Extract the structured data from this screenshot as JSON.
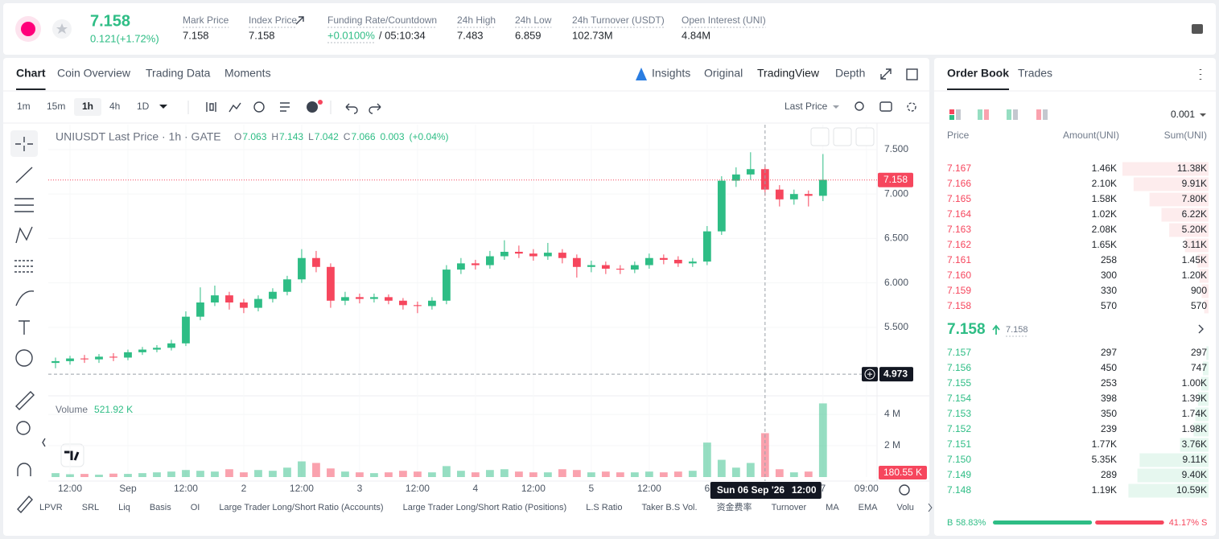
{
  "header": {
    "price": "7.158",
    "change": "0.121(+1.72%)",
    "stats": [
      {
        "label": "Mark Price",
        "value": "7.158"
      },
      {
        "label": "Index Price",
        "value": "7.158"
      },
      {
        "label": "Funding Rate/Countdown",
        "value": "+0.0100%",
        "extra": "/ 05:10:34"
      },
      {
        "label": "24h High",
        "value": "7.483"
      },
      {
        "label": "24h Low",
        "value": "6.859"
      },
      {
        "label": "24h Turnover (USDT)",
        "value": "102.73M"
      },
      {
        "label": "Open Interest (UNI)",
        "value": "4.84M"
      }
    ]
  },
  "tabs": {
    "left": [
      "Chart",
      "Coin Overview",
      "Trading Data",
      "Moments"
    ],
    "right": [
      "Insights",
      "Original",
      "TradingView",
      "Depth"
    ]
  },
  "toolbar": {
    "intervals": [
      "1m",
      "15m",
      "1h",
      "4h",
      "1D"
    ],
    "price_type": "Last Price"
  },
  "chart_data": {
    "type": "candlestick",
    "title": "UNIUSDT Last Price · 1h · GATE",
    "ohlc_legend": [
      {
        "key": "O",
        "value": "7.063"
      },
      {
        "key": "H",
        "value": "7.143"
      },
      {
        "key": "L",
        "value": "7.042"
      },
      {
        "key": "C",
        "value": "7.066"
      }
    ],
    "change": "0.003",
    "change_pct": "(+0.04%)",
    "x": [
      -15,
      -12,
      -9,
      -6,
      -3,
      0,
      3,
      6,
      9,
      12,
      15,
      18,
      21,
      24,
      27,
      30,
      33,
      36,
      39,
      42,
      45,
      48,
      51,
      54,
      57,
      60,
      63,
      66,
      69,
      72,
      75,
      78,
      81,
      84,
      87,
      90,
      93,
      96,
      99,
      102,
      105,
      108,
      111,
      114,
      117,
      120,
      123,
      126,
      129,
      132,
      135,
      138,
      141,
      144
    ],
    "open": [
      5.1,
      5.12,
      5.15,
      5.14,
      5.17,
      5.16,
      5.22,
      5.25,
      5.27,
      5.32,
      5.62,
      5.78,
      5.86,
      5.78,
      5.72,
      5.82,
      5.9,
      6.04,
      6.28,
      6.18,
      5.8,
      5.84,
      5.82,
      5.84,
      5.8,
      5.75,
      5.74,
      5.8,
      6.15,
      6.22,
      6.2,
      6.3,
      6.35,
      6.33,
      6.3,
      6.34,
      6.28,
      6.18,
      6.2,
      6.16,
      6.15,
      6.2,
      6.28,
      6.26,
      6.22,
      6.24,
      6.58,
      7.15,
      7.22,
      7.28,
      7.05,
      6.94,
      7.0,
      6.98
    ],
    "high": [
      5.16,
      5.18,
      5.19,
      5.2,
      5.21,
      5.25,
      5.28,
      5.3,
      5.36,
      5.68,
      5.95,
      5.97,
      5.9,
      5.82,
      5.86,
      5.94,
      6.08,
      6.38,
      6.36,
      6.22,
      5.9,
      5.88,
      5.88,
      5.87,
      5.83,
      5.79,
      5.84,
      6.2,
      6.28,
      6.26,
      6.36,
      6.48,
      6.42,
      6.38,
      6.45,
      6.38,
      6.32,
      6.25,
      6.24,
      6.2,
      6.24,
      6.33,
      6.32,
      6.3,
      6.28,
      6.64,
      7.2,
      7.3,
      7.47,
      7.33,
      7.1,
      7.05,
      7.04,
      7.45
    ],
    "low": [
      5.04,
      5.08,
      5.1,
      5.1,
      5.12,
      5.13,
      5.19,
      5.22,
      5.24,
      5.29,
      5.58,
      5.74,
      5.7,
      5.66,
      5.68,
      5.78,
      5.86,
      6.0,
      6.12,
      5.72,
      5.75,
      5.77,
      5.78,
      5.76,
      5.7,
      5.66,
      5.7,
      5.76,
      6.1,
      6.15,
      6.16,
      6.26,
      6.28,
      6.25,
      6.26,
      6.22,
      6.06,
      6.12,
      6.1,
      6.1,
      6.11,
      6.16,
      6.21,
      6.18,
      6.18,
      6.2,
      6.54,
      7.08,
      7.16,
      6.98,
      6.86,
      6.88,
      6.86,
      6.92
    ],
    "close": [
      5.12,
      5.15,
      5.14,
      5.17,
      5.16,
      5.22,
      5.25,
      5.27,
      5.32,
      5.62,
      5.78,
      5.86,
      5.78,
      5.72,
      5.82,
      5.9,
      6.04,
      6.28,
      6.18,
      5.8,
      5.84,
      5.82,
      5.84,
      5.8,
      5.75,
      5.74,
      5.8,
      6.15,
      6.22,
      6.2,
      6.3,
      6.35,
      6.33,
      6.3,
      6.34,
      6.28,
      6.18,
      6.2,
      6.16,
      6.15,
      6.2,
      6.28,
      6.26,
      6.22,
      6.24,
      6.58,
      7.15,
      7.22,
      7.28,
      7.05,
      6.94,
      7.0,
      6.98,
      7.16
    ],
    "volume": [
      0.25,
      0.18,
      0.2,
      0.15,
      0.22,
      0.2,
      0.25,
      0.3,
      0.35,
      0.45,
      0.4,
      0.35,
      0.5,
      0.3,
      0.45,
      0.4,
      0.6,
      1.0,
      0.9,
      0.55,
      0.35,
      0.3,
      0.25,
      0.3,
      0.4,
      0.35,
      0.3,
      0.7,
      0.4,
      0.3,
      0.45,
      0.5,
      0.35,
      0.3,
      0.3,
      0.5,
      0.45,
      0.3,
      0.35,
      0.3,
      0.3,
      0.35,
      0.3,
      0.35,
      0.4,
      2.2,
      1.1,
      0.6,
      0.9,
      2.8,
      0.5,
      0.3,
      0.35,
      4.7
    ],
    "up_color": "#2ebd85",
    "down_color": "#f6465d",
    "xlim": [
      -16.5,
      155.2
    ],
    "xticks": [
      {
        "value": -12,
        "label": "12:00"
      },
      {
        "value": 0,
        "label": "Sep"
      },
      {
        "value": 12,
        "label": "12:00"
      },
      {
        "value": 24,
        "label": "2"
      },
      {
        "value": 36,
        "label": "12:00"
      },
      {
        "value": 48,
        "label": "3"
      },
      {
        "value": 60,
        "label": "12:00"
      },
      {
        "value": 72,
        "label": "4"
      },
      {
        "value": 84,
        "label": "12:00"
      },
      {
        "value": 96,
        "label": "5"
      },
      {
        "value": 108,
        "label": "12:00"
      },
      {
        "value": 120,
        "label": "6"
      },
      {
        "value": 144,
        "label": "7"
      },
      {
        "value": 153,
        "label": "09:00"
      }
    ],
    "ylim": [
      4.73,
      7.78
    ],
    "yticks": [
      {
        "value": 5.5,
        "label": "5.500"
      },
      {
        "value": 6,
        "label": "6.000"
      },
      {
        "value": 6.5,
        "label": "6.500"
      },
      {
        "value": 7,
        "label": "7.000"
      },
      {
        "value": 7.5,
        "label": "7.500"
      }
    ],
    "volume_label": "Volume",
    "volume_value": "521.92 K",
    "volume_ylim": [
      0,
      5.03
    ],
    "volume_yticks": [
      {
        "value": 2,
        "label": "2 M"
      },
      {
        "value": 4,
        "label": "4 M"
      }
    ],
    "last_price": 7.158,
    "last_volume_label": "180.55 K",
    "crosshair": {
      "x": 132,
      "price": 4.973,
      "date": "Sun 06 Sep '26",
      "time": "12:00"
    }
  },
  "indicators": [
    "LPVR",
    "SRL",
    "Liq",
    "Basis",
    "OI",
    "Large Trader Long/Short Ratio (Accounts)",
    "Large Trader Long/Short Ratio (Positions)",
    "L.S Ratio",
    "Taker B.S Vol.",
    "资金费率",
    "Turnover",
    "MA",
    "EMA",
    "Volu"
  ],
  "order_book": {
    "tabs": [
      "Order Book",
      "Trades"
    ],
    "precision": "0.001",
    "headers": [
      "Price",
      "Amount(UNI)",
      "Sum(UNI)"
    ],
    "asks": {
      "prices": [
        "7.167",
        "7.166",
        "7.165",
        "7.164",
        "7.163",
        "7.162",
        "7.161",
        "7.160",
        "7.159",
        "7.158"
      ],
      "amounts": [
        "1.46K",
        "2.10K",
        "1.58K",
        "1.02K",
        "2.08K",
        "1.65K",
        "258",
        "300",
        "330",
        "570"
      ],
      "sums": [
        11380,
        9910,
        7800,
        6220,
        5200,
        3110,
        1450,
        1200,
        900,
        570
      ],
      "sum_labels": [
        "11.38K",
        "9.91K",
        "7.80K",
        "6.22K",
        "5.20K",
        "3.11K",
        "1.45K",
        "1.20K",
        "900",
        "570"
      ]
    },
    "mid": {
      "price": "7.158",
      "mark": "7.158"
    },
    "bids": {
      "prices": [
        "7.157",
        "7.156",
        "7.155",
        "7.154",
        "7.153",
        "7.152",
        "7.151",
        "7.150",
        "7.149",
        "7.148"
      ],
      "amounts": [
        "297",
        "450",
        "253",
        "398",
        "350",
        "239",
        "1.77K",
        "5.35K",
        "289",
        "1.19K"
      ],
      "sums": [
        297,
        747,
        1000,
        1390,
        1740,
        1980,
        3760,
        9110,
        9400,
        10590
      ],
      "sum_labels": [
        "297",
        "747",
        "1.00K",
        "1.39K",
        "1.74K",
        "1.98K",
        "3.76K",
        "9.11K",
        "9.40K",
        "10.59K"
      ]
    },
    "ratio": {
      "buy_key": "B",
      "buy": 58.83,
      "buy_label": "58.83%",
      "sell": 41.17,
      "sell_label": "41.17%",
      "sell_key": "S"
    }
  }
}
